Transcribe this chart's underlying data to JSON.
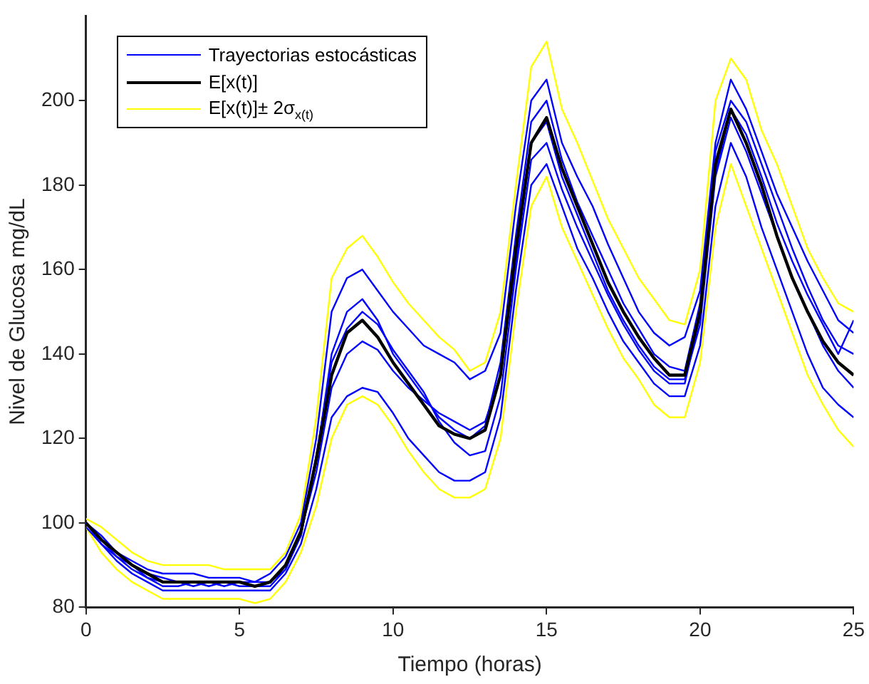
{
  "chart_data": {
    "type": "line",
    "xlabel": "Tiempo (horas)",
    "ylabel": "Nivel de Glucosa mg/dL",
    "x": [
      0,
      0.5,
      1,
      1.5,
      2,
      2.5,
      3,
      3.5,
      4,
      4.5,
      5,
      5.5,
      6,
      6.5,
      7,
      7.5,
      8,
      8.5,
      9,
      9.5,
      10,
      10.5,
      11,
      11.5,
      12,
      12.5,
      13,
      13.5,
      14,
      14.5,
      15,
      15.5,
      16,
      16.5,
      17,
      17.5,
      18,
      18.5,
      19,
      19.5,
      20,
      20.5,
      21,
      21.5,
      22,
      22.5,
      23,
      23.5,
      24,
      24.5,
      25
    ],
    "xlim": [
      0,
      25
    ],
    "xticks": [
      0,
      5,
      10,
      15,
      20,
      25
    ],
    "ylim": [
      80,
      220
    ],
    "yticks": [
      80,
      100,
      120,
      140,
      160,
      180,
      200
    ],
    "legend": "top left",
    "grid": false,
    "marker": "none",
    "line_style": "solid",
    "series": [
      {
        "name": "Trayectorias estocásticas",
        "color": "#0000ff",
        "values": [
          100,
          97,
          93,
          91,
          89,
          88,
          88,
          88,
          87,
          87,
          87,
          86,
          88,
          92,
          100,
          120,
          150,
          158,
          160,
          155,
          150,
          146,
          142,
          140,
          138,
          134,
          136,
          145,
          175,
          200,
          205,
          190,
          182,
          175,
          166,
          158,
          150,
          145,
          142,
          144,
          155,
          190,
          205,
          198,
          188,
          178,
          170,
          162,
          155,
          148,
          145
        ]
      },
      {
        "color": "#0000ff",
        "values": [
          99,
          95,
          91,
          88,
          86,
          84,
          84,
          84,
          84,
          84,
          84,
          84,
          84,
          88,
          95,
          108,
          125,
          130,
          132,
          131,
          126,
          120,
          116,
          112,
          110,
          110,
          112,
          125,
          155,
          180,
          185,
          175,
          165,
          158,
          150,
          143,
          138,
          133,
          130,
          130,
          142,
          175,
          190,
          182,
          170,
          160,
          150,
          140,
          132,
          128,
          125
        ]
      },
      {
        "color": "#0000ff",
        "values": [
          100,
          96,
          92,
          89,
          87,
          85,
          85,
          86,
          85,
          86,
          85,
          85,
          86,
          90,
          97,
          115,
          140,
          150,
          153,
          148,
          140,
          135,
          130,
          125,
          122,
          120,
          123,
          138,
          168,
          195,
          200,
          186,
          176,
          168,
          160,
          152,
          146,
          140,
          137,
          136,
          152,
          188,
          200,
          195,
          185,
          175,
          165,
          156,
          148,
          142,
          140
        ]
      },
      {
        "color": "#0000ff",
        "values": [
          100,
          95,
          92,
          90,
          87,
          86,
          86,
          85,
          86,
          85,
          86,
          86,
          86,
          89,
          98,
          112,
          132,
          140,
          143,
          141,
          136,
          132,
          129,
          126,
          124,
          122,
          124,
          135,
          162,
          190,
          195,
          182,
          173,
          164,
          155,
          148,
          142,
          137,
          134,
          134,
          147,
          182,
          196,
          188,
          178,
          168,
          158,
          150,
          142,
          136,
          132
        ]
      },
      {
        "color": "#0000ff",
        "values": [
          100,
          96,
          93,
          90,
          88,
          87,
          86,
          86,
          86,
          86,
          86,
          85,
          85,
          89,
          97,
          116,
          138,
          146,
          150,
          147,
          141,
          136,
          131,
          124,
          119,
          116,
          117,
          130,
          160,
          186,
          190,
          179,
          170,
          162,
          154,
          147,
          141,
          136,
          133,
          133,
          149,
          183,
          198,
          192,
          182,
          171,
          162,
          154,
          147,
          140,
          148
        ]
      },
      {
        "name": "E[x(t)]",
        "color": "#000000",
        "values": [
          100,
          96,
          93,
          90,
          88,
          86,
          86,
          86,
          86,
          86,
          86,
          85,
          86,
          90,
          98,
          115,
          135,
          145,
          148,
          144,
          138,
          133,
          128,
          123,
          121,
          120,
          122,
          135,
          165,
          190,
          196,
          184,
          175,
          166,
          157,
          150,
          144,
          139,
          135,
          135,
          150,
          185,
          198,
          190,
          180,
          168,
          158,
          150,
          143,
          138,
          135
        ]
      },
      {
        "name": "E[x(t)]± 2σ$_{x(t)}$",
        "color": "#ffff00",
        "values": [
          101,
          99,
          96,
          93,
          91,
          90,
          90,
          90,
          90,
          89,
          89,
          89,
          89,
          93,
          102,
          125,
          158,
          165,
          168,
          163,
          157,
          152,
          148,
          144,
          141,
          136,
          138,
          150,
          180,
          208,
          214,
          198,
          190,
          181,
          172,
          165,
          158,
          153,
          148,
          147,
          160,
          200,
          210,
          205,
          193,
          185,
          175,
          165,
          158,
          152,
          150
        ]
      },
      {
        "color": "#ffff00",
        "values": [
          99,
          93,
          89,
          86,
          84,
          82,
          82,
          82,
          82,
          82,
          82,
          81,
          82,
          86,
          93,
          104,
          120,
          128,
          130,
          128,
          123,
          117,
          112,
          108,
          106,
          106,
          108,
          120,
          150,
          175,
          182,
          170,
          162,
          154,
          146,
          139,
          134,
          128,
          125,
          125,
          138,
          170,
          185,
          175,
          165,
          155,
          145,
          135,
          128,
          122,
          118
        ]
      }
    ]
  }
}
